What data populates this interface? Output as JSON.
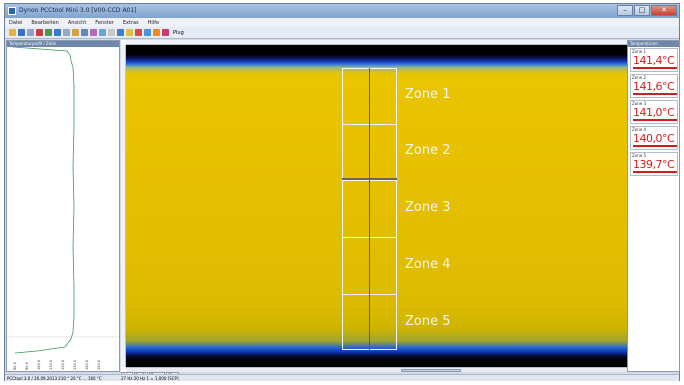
{
  "window": {
    "title": "Dynon PCCtool Mini 3.0 [V00-CCD A01]",
    "controls": [
      "–",
      "□",
      "✕"
    ]
  },
  "menu": [
    "Datei",
    "Bearbeiten",
    "Ansicht",
    "Fenster",
    "Extras",
    "Hilfe"
  ],
  "toolbar": {
    "label": "Plug"
  },
  "left_panel": {
    "title": "Temperaturprofil / Zeile",
    "tick_labels": [
      "80,0",
      "90,0",
      "100,0",
      "110,0",
      "120,0",
      "130,0",
      "140,0",
      "150,0"
    ]
  },
  "right_panel": {
    "title": "Temperaturen",
    "zones": [
      {
        "tag": "Zone 1",
        "value": "141,4°C"
      },
      {
        "tag": "Zone 2",
        "value": "141,6°C"
      },
      {
        "tag": "Zone 3",
        "value": "141,0°C"
      },
      {
        "tag": "Zone 4",
        "value": "140,0°C"
      },
      {
        "tag": "Zone 5",
        "value": "139,7°C"
      }
    ]
  },
  "image": {
    "zone_labels": [
      "Zone 1",
      "Zone 2",
      "Zone 3",
      "Zone 4",
      "Zone 5"
    ]
  },
  "bottom_tabs": [
    "Bild",
    "Profil",
    "Zonen",
    "Diag"
  ],
  "status": {
    "left": "PCCtool 3.0 / 26.09.2013  210 ° 20 °C ... 160 °C",
    "mid": "27 Hz  20 Hz    1 = 1,000    [SCP]",
    "right": ""
  },
  "colors": {
    "temp_value": "#d41c1c",
    "zone_border": "#f5f5f5",
    "profile_line": "#3a9a5a"
  }
}
